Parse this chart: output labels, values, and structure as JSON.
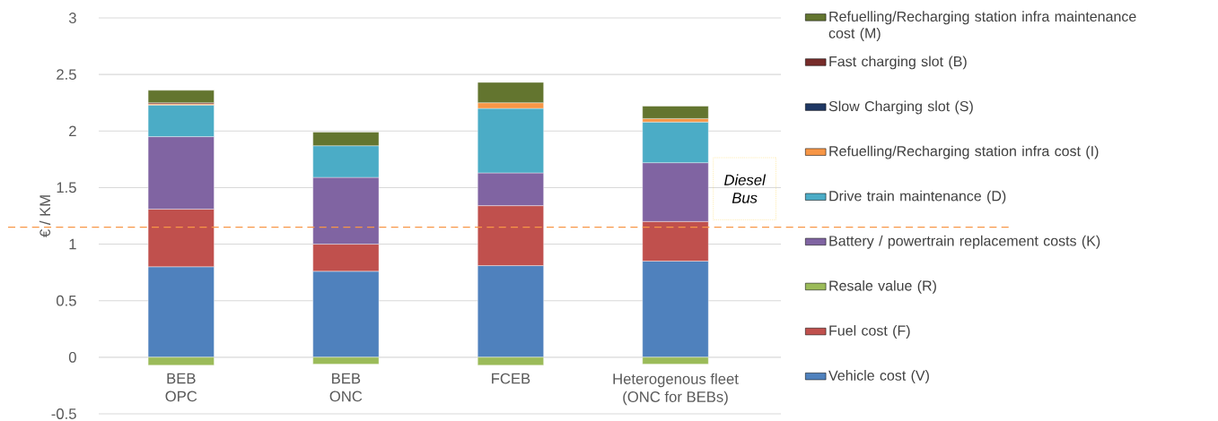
{
  "chart_data": {
    "type": "bar",
    "stacked": true,
    "ylabel": "€ / KM",
    "categories": [
      "BEB OPC",
      "BEB ONC",
      "FCEB",
      "Heterogenous fleet (ONC for BEBs)"
    ],
    "series": [
      {
        "name": "Vehicle cost (V)",
        "color": "#4f81bd",
        "values": [
          0.8,
          0.76,
          0.81,
          0.85
        ]
      },
      {
        "name": "Fuel cost (F)",
        "color": "#c0504d",
        "values": [
          0.51,
          0.24,
          0.53,
          0.35
        ]
      },
      {
        "name": "Resale value (R)",
        "color": "#9bbb59",
        "values": [
          -0.07,
          -0.06,
          -0.07,
          -0.06
        ]
      },
      {
        "name": "Battery / powertrain replacement costs (K)",
        "color": "#8064a2",
        "values": [
          0.64,
          0.59,
          0.29,
          0.52
        ]
      },
      {
        "name": "Drive train maintenance (D)",
        "color": "#4bacc6",
        "values": [
          0.28,
          0.28,
          0.57,
          0.36
        ]
      },
      {
        "name": "Refuelling/Recharging station infra cost (I)",
        "color": "#f79646",
        "values": [
          0.01,
          0,
          0.05,
          0.03
        ]
      },
      {
        "name": "Slow Charging slot (S)",
        "color": "#1f3864",
        "values": [
          0,
          0,
          0,
          0
        ]
      },
      {
        "name": "Fast charging slot (B)",
        "color": "#772c2a",
        "values": [
          0.01,
          0,
          0,
          0
        ]
      },
      {
        "name": "Refuelling/Recharging station infra maintenance cost (M)",
        "color": "#63752f",
        "values": [
          0.11,
          0.12,
          0.18,
          0.11
        ]
      }
    ],
    "ylim": [
      -0.5,
      3
    ],
    "yticks": [
      -0.5,
      0,
      0.5,
      1,
      1.5,
      2,
      2.5,
      3
    ],
    "grid": "y",
    "legend": "right",
    "ref_lines": [
      {
        "axis": "y",
        "value": 1.15,
        "label": "Diesel Bus",
        "color": "#f79646",
        "line_style": "dashed"
      }
    ]
  }
}
